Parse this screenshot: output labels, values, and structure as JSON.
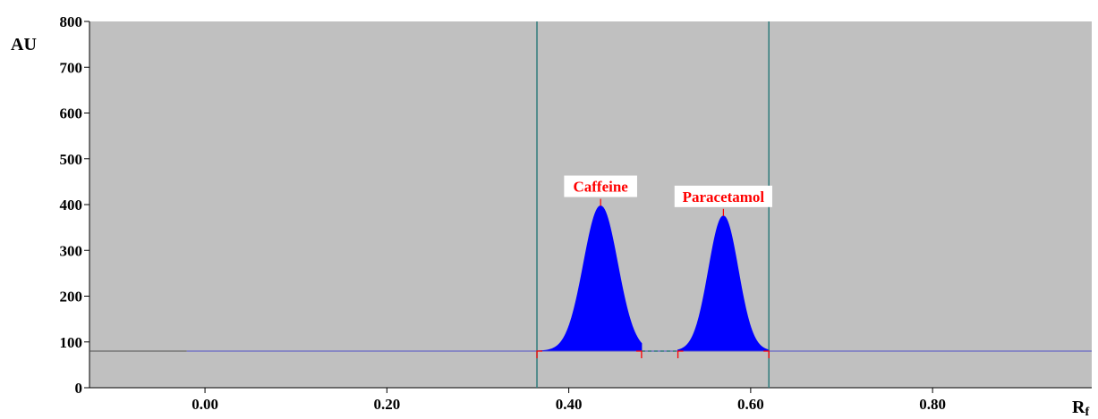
{
  "chart_data": {
    "type": "area",
    "ylabel": "AU",
    "xlabel": "R",
    "xlabel_sub": "f",
    "xlim": [
      -0.127,
      0.975
    ],
    "ylim": [
      0,
      800
    ],
    "y_ticks": [
      "0",
      "100",
      "200",
      "300",
      "400",
      "500",
      "600",
      "700",
      "800"
    ],
    "x_ticks": [
      "0.00",
      "0.20",
      "0.40",
      "0.60",
      "0.80"
    ],
    "baseline": 80,
    "integration_window": [
      0.365,
      0.62
    ],
    "peaks": [
      {
        "name": "Caffeine",
        "rf": 0.435,
        "height": 397,
        "start": 0.365,
        "end": 0.48
      },
      {
        "name": "Paracetamol",
        "rf": 0.57,
        "height": 375,
        "start": 0.52,
        "end": 0.62
      }
    ],
    "colors": {
      "plot_bg": "#c0c0c0",
      "peak_fill": "#0000ff",
      "baseline": "#5050c8",
      "window_line": "#2e7a7a",
      "label_text": "#ff0000",
      "marker": "#ff0000"
    }
  }
}
